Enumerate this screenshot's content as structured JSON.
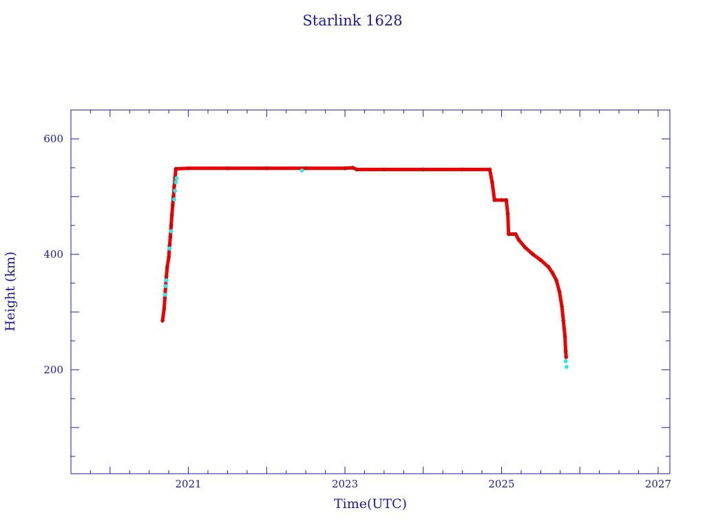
{
  "chart_data": {
    "type": "scatter",
    "title": "Starlink 1628",
    "xlabel": "Time(UTC)",
    "ylabel": "Height (km)",
    "xlim": [
      2019.5,
      2027.15
    ],
    "ylim": [
      20,
      650
    ],
    "x_ticks": [
      2021,
      2023,
      2025,
      2027
    ],
    "x_tick_labels": [
      "2021",
      "2023",
      "2025",
      "2027"
    ],
    "y_ticks": [
      200,
      400,
      600
    ],
    "y_tick_labels": [
      "200",
      "400",
      "600"
    ],
    "grid": false,
    "legend": "none",
    "colors": {
      "axes": "#1a1a99",
      "series_main": "#ee0000",
      "series_alt": "#33e6e6",
      "marker_edge": "#8b1a1a"
    },
    "series": [
      {
        "marker": "star",
        "color": "#ee0000",
        "points": [
          [
            2020.67,
            285
          ],
          [
            2020.69,
            305
          ],
          [
            2020.7,
            325
          ],
          [
            2020.71,
            345
          ],
          [
            2020.72,
            362
          ],
          [
            2020.73,
            378
          ],
          [
            2020.75,
            395
          ],
          [
            2020.76,
            415
          ],
          [
            2020.77,
            430
          ],
          [
            2020.78,
            450
          ],
          [
            2020.79,
            468
          ],
          [
            2020.8,
            485
          ],
          [
            2020.81,
            500
          ],
          [
            2020.82,
            518
          ],
          [
            2020.83,
            533
          ],
          [
            2020.84,
            548
          ],
          [
            2021.0,
            549
          ],
          [
            2021.5,
            549
          ],
          [
            2022.0,
            549
          ],
          [
            2022.5,
            549
          ],
          [
            2023.0,
            549
          ],
          [
            2023.1,
            550
          ],
          [
            2023.15,
            547
          ],
          [
            2023.5,
            547
          ],
          [
            2024.0,
            547
          ],
          [
            2024.5,
            547
          ],
          [
            2024.85,
            547
          ],
          [
            2024.88,
            525
          ],
          [
            2024.91,
            494
          ],
          [
            2025.0,
            494
          ],
          [
            2025.06,
            494
          ],
          [
            2025.08,
            470
          ],
          [
            2025.09,
            435
          ],
          [
            2025.15,
            435
          ],
          [
            2025.18,
            435
          ],
          [
            2025.22,
            425
          ],
          [
            2025.3,
            412
          ],
          [
            2025.4,
            400
          ],
          [
            2025.5,
            390
          ],
          [
            2025.6,
            378
          ],
          [
            2025.65,
            368
          ],
          [
            2025.7,
            355
          ],
          [
            2025.74,
            335
          ],
          [
            2025.77,
            310
          ],
          [
            2025.79,
            285
          ],
          [
            2025.81,
            258
          ],
          [
            2025.82,
            232
          ],
          [
            2025.825,
            222
          ]
        ]
      },
      {
        "marker": "dot",
        "color": "#33e6e6",
        "points": [
          [
            2020.7,
            330
          ],
          [
            2020.71,
            345
          ],
          [
            2020.72,
            355
          ],
          [
            2020.76,
            410
          ],
          [
            2020.78,
            440
          ],
          [
            2020.82,
            495
          ],
          [
            2020.83,
            510
          ],
          [
            2020.84,
            525
          ],
          [
            2020.85,
            532
          ],
          [
            2022.45,
            545
          ],
          [
            2025.82,
            215
          ],
          [
            2025.83,
            205
          ]
        ]
      }
    ]
  }
}
